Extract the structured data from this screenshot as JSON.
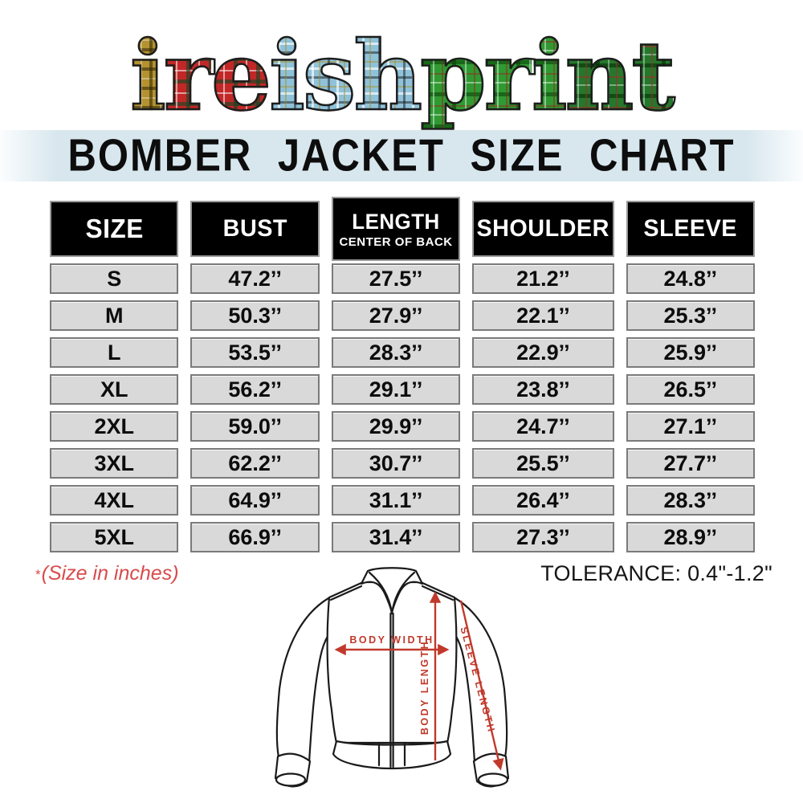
{
  "logo": {
    "text": "ireishprint",
    "letters": [
      {
        "ch": "i",
        "tartan": "gold"
      },
      {
        "ch": "r",
        "tartan": "red"
      },
      {
        "ch": "e",
        "tartan": "red"
      },
      {
        "ch": "i",
        "tartan": "blue"
      },
      {
        "ch": "s",
        "tartan": "blue"
      },
      {
        "ch": "h",
        "tartan": "blue"
      },
      {
        "ch": "p",
        "tartan": "green"
      },
      {
        "ch": "r",
        "tartan": "green"
      },
      {
        "ch": "i",
        "tartan": "green"
      },
      {
        "ch": "n",
        "tartan": "green2"
      },
      {
        "ch": "t",
        "tartan": "green2"
      }
    ],
    "tartan_colors": {
      "gold": "#b3922f",
      "red": "#c22727",
      "blue": "#8fc2da",
      "green": "#2f9a32",
      "green2": "#25772c"
    }
  },
  "title": {
    "text": "BOMBER JACKET SIZE CHART",
    "strip_bg": "#d8e7ee"
  },
  "chart_data": {
    "type": "table",
    "title": "BOMBER JACKET SIZE CHART",
    "units": "inches",
    "value_suffix": "’’",
    "columns": [
      {
        "label": "SIZE",
        "sub": ""
      },
      {
        "label": "BUST",
        "sub": ""
      },
      {
        "label": "LENGTH",
        "sub": "CENTER OF BACK"
      },
      {
        "label": "SHOULDER",
        "sub": ""
      },
      {
        "label": "SLEEVE",
        "sub": ""
      }
    ],
    "rows": [
      {
        "size": "S",
        "bust": 47.2,
        "length_center_back": 27.5,
        "shoulder": 21.2,
        "sleeve": 24.8
      },
      {
        "size": "M",
        "bust": 50.3,
        "length_center_back": 27.9,
        "shoulder": 22.1,
        "sleeve": 25.3
      },
      {
        "size": "L",
        "bust": 53.5,
        "length_center_back": 28.3,
        "shoulder": 22.9,
        "sleeve": 25.9
      },
      {
        "size": "XL",
        "bust": 56.2,
        "length_center_back": 29.1,
        "shoulder": 23.8,
        "sleeve": 26.5
      },
      {
        "size": "2XL",
        "bust": 59.0,
        "length_center_back": 29.9,
        "shoulder": 24.7,
        "sleeve": 27.1
      },
      {
        "size": "3XL",
        "bust": 62.2,
        "length_center_back": 30.7,
        "shoulder": 25.5,
        "sleeve": 27.7
      },
      {
        "size": "4XL",
        "bust": 64.9,
        "length_center_back": 31.1,
        "shoulder": 26.4,
        "sleeve": 28.3
      },
      {
        "size": "5XL",
        "bust": 66.9,
        "length_center_back": 31.4,
        "shoulder": 27.3,
        "sleeve": 28.9
      }
    ]
  },
  "notes": {
    "size_note_star": "*",
    "size_note": "(Size in inches)",
    "tolerance": "TOLERANCE: 0.4\"-1.2\""
  },
  "diagram": {
    "labels": {
      "body_width": "BODY WIDTH",
      "body_length": "BODY LENGTH",
      "sleeve_length": "SLEEVE LENGTH"
    },
    "arrow_color": "#c0392b"
  }
}
